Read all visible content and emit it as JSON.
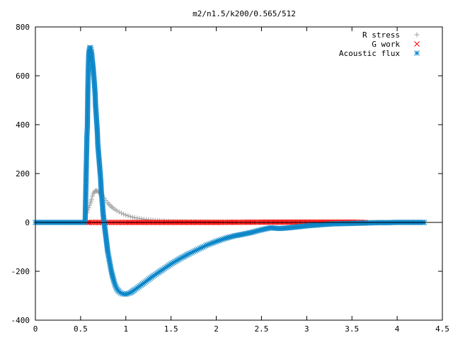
{
  "chart_data": {
    "type": "scatter",
    "title": "m2/n1.5/k200/0.565/512",
    "xlabel": "",
    "ylabel": "",
    "xlim": [
      0,
      4.5
    ],
    "ylim": [
      -400,
      800
    ],
    "grid": false,
    "legend_position": "top-right",
    "x_ticks": [
      "0",
      "0.5",
      "1",
      "1.5",
      "2",
      "2.5",
      "3",
      "3.5",
      "4",
      "4.5"
    ],
    "y_ticks": [
      "-400",
      "-200",
      "0",
      "200",
      "400",
      "600",
      "800"
    ],
    "series": [
      {
        "name": "R stress",
        "marker": "plus",
        "color": "#a0a0a0",
        "points": [
          [
            0.57,
            40
          ],
          [
            0.58,
            50
          ],
          [
            0.59,
            60
          ],
          [
            0.6,
            70
          ],
          [
            0.61,
            80
          ],
          [
            0.62,
            95
          ],
          [
            0.63,
            108
          ],
          [
            0.64,
            118
          ],
          [
            0.65,
            124
          ],
          [
            0.66,
            128
          ],
          [
            0.67,
            130
          ],
          [
            0.68,
            129
          ],
          [
            0.69,
            127
          ],
          [
            0.7,
            124
          ],
          [
            0.72,
            118
          ],
          [
            0.74,
            110
          ],
          [
            0.76,
            100
          ],
          [
            0.78,
            90
          ],
          [
            0.8,
            80
          ],
          [
            0.83,
            68
          ],
          [
            0.86,
            58
          ],
          [
            0.9,
            48
          ],
          [
            0.95,
            38
          ],
          [
            1.0,
            30
          ],
          [
            1.05,
            24
          ],
          [
            1.1,
            19
          ],
          [
            1.2,
            13
          ],
          [
            1.3,
            9
          ],
          [
            1.4,
            6
          ],
          [
            1.5,
            4
          ],
          [
            1.7,
            3
          ],
          [
            2.0,
            2
          ],
          [
            2.5,
            1
          ],
          [
            3.0,
            1
          ],
          [
            3.5,
            1
          ],
          [
            4.0,
            1
          ],
          [
            4.3,
            1
          ]
        ]
      },
      {
        "name": "G work",
        "marker": "cross",
        "color": "#ff0000",
        "points": [
          [
            0.57,
            0
          ],
          [
            0.6,
            0
          ],
          [
            0.7,
            0
          ],
          [
            0.8,
            0
          ],
          [
            0.9,
            0
          ],
          [
            1.0,
            0
          ],
          [
            1.2,
            0
          ],
          [
            1.5,
            0
          ],
          [
            2.0,
            0
          ],
          [
            2.5,
            1
          ],
          [
            3.0,
            1
          ],
          [
            3.5,
            1
          ],
          [
            3.65,
            0
          ]
        ]
      },
      {
        "name": "Acoustic flux",
        "marker": "star",
        "color": "#0b86c8",
        "points": [
          [
            0.0,
            0
          ],
          [
            0.2,
            0
          ],
          [
            0.4,
            0
          ],
          [
            0.5,
            0
          ],
          [
            0.55,
            0
          ],
          [
            0.56,
            180
          ],
          [
            0.57,
            355
          ],
          [
            0.575,
            395
          ],
          [
            0.58,
            545
          ],
          [
            0.585,
            630
          ],
          [
            0.59,
            690
          ],
          [
            0.6,
            715
          ],
          [
            0.61,
            715
          ],
          [
            0.62,
            700
          ],
          [
            0.63,
            660
          ],
          [
            0.64,
            625
          ],
          [
            0.65,
            580
          ],
          [
            0.66,
            530
          ],
          [
            0.665,
            480
          ],
          [
            0.675,
            425
          ],
          [
            0.685,
            370
          ],
          [
            0.69,
            320
          ],
          [
            0.7,
            275
          ],
          [
            0.71,
            230
          ],
          [
            0.72,
            185
          ],
          [
            0.73,
            120
          ],
          [
            0.74,
            80
          ],
          [
            0.75,
            30
          ],
          [
            0.76,
            0
          ],
          [
            0.77,
            -30
          ],
          [
            0.78,
            -60
          ],
          [
            0.79,
            -90
          ],
          [
            0.8,
            -120
          ],
          [
            0.82,
            -160
          ],
          [
            0.84,
            -200
          ],
          [
            0.86,
            -230
          ],
          [
            0.88,
            -255
          ],
          [
            0.9,
            -272
          ],
          [
            0.93,
            -285
          ],
          [
            0.96,
            -292
          ],
          [
            1.0,
            -294
          ],
          [
            1.05,
            -288
          ],
          [
            1.1,
            -275
          ],
          [
            1.2,
            -248
          ],
          [
            1.3,
            -220
          ],
          [
            1.4,
            -195
          ],
          [
            1.5,
            -170
          ],
          [
            1.6,
            -148
          ],
          [
            1.7,
            -128
          ],
          [
            1.8,
            -110
          ],
          [
            1.9,
            -92
          ],
          [
            2.0,
            -78
          ],
          [
            2.1,
            -65
          ],
          [
            2.2,
            -55
          ],
          [
            2.3,
            -48
          ],
          [
            2.4,
            -40
          ],
          [
            2.5,
            -30
          ],
          [
            2.6,
            -22
          ],
          [
            2.7,
            -25
          ],
          [
            2.8,
            -22
          ],
          [
            2.9,
            -18
          ],
          [
            3.0,
            -14
          ],
          [
            3.1,
            -11
          ],
          [
            3.2,
            -8
          ],
          [
            3.3,
            -6
          ],
          [
            3.4,
            -5
          ],
          [
            3.5,
            -4
          ],
          [
            3.6,
            -3
          ],
          [
            3.7,
            -2
          ],
          [
            3.8,
            -1
          ],
          [
            3.9,
            -1
          ],
          [
            4.0,
            0
          ],
          [
            4.1,
            0
          ],
          [
            4.2,
            0
          ],
          [
            4.3,
            0
          ]
        ]
      }
    ]
  }
}
